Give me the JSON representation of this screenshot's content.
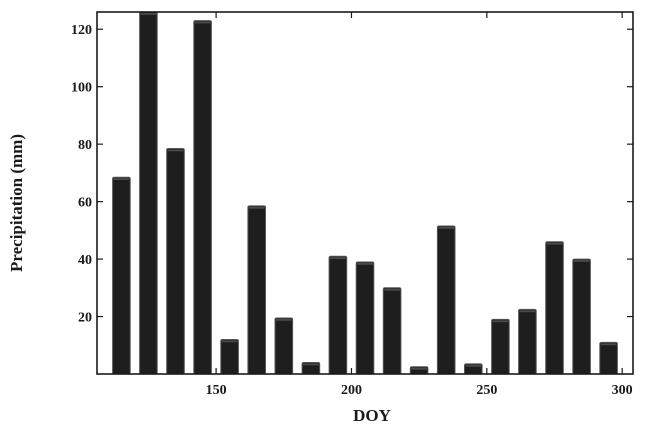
{
  "chart_data": {
    "type": "bar",
    "xlabel": "DOY",
    "ylabel": "Precipitation (mm)",
    "xlim": [
      106,
      304
    ],
    "ylim": [
      0,
      126
    ],
    "x_ticks": [
      150,
      200,
      250,
      300
    ],
    "y_ticks": [
      20,
      40,
      60,
      80,
      100,
      120
    ],
    "bar_width_doy": 6.5,
    "x": [
      115,
      125,
      135,
      145,
      155,
      165,
      175,
      185,
      195,
      205,
      215,
      225,
      235,
      245,
      255,
      265,
      275,
      285,
      295
    ],
    "values": [
      68.5,
      126,
      78.5,
      123,
      12,
      58.5,
      19.5,
      4,
      41,
      39,
      30,
      2.5,
      51.5,
      3.5,
      19,
      22.5,
      46,
      40,
      11
    ],
    "grid": false,
    "bar_color": "#1e1e1e"
  }
}
